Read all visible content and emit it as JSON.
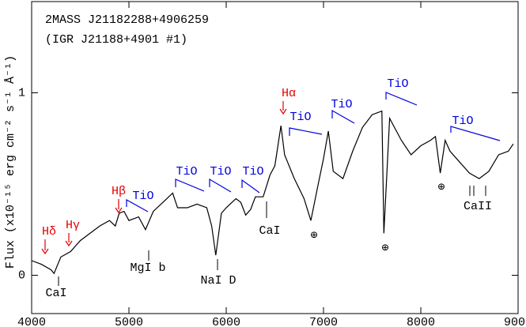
{
  "chart_data": {
    "type": "line",
    "y_label": "Flux (x10⁻¹⁵ erg cm⁻² s⁻¹ Å⁻¹)",
    "color": "#000000",
    "x": [
      4000,
      4100,
      4200,
      4230,
      4300,
      4400,
      4500,
      4600,
      4700,
      4800,
      4860,
      4900,
      4950,
      5000,
      5100,
      5170,
      5250,
      5350,
      5450,
      5500,
      5600,
      5700,
      5800,
      5850,
      5893,
      5950,
      6000,
      6100,
      6150,
      6200,
      6250,
      6300,
      6380,
      6450,
      6500,
      6563,
      6600,
      6700,
      6800,
      6870,
      6950,
      7000,
      7050,
      7100,
      7200,
      7300,
      7400,
      7500,
      7600,
      7620,
      7680,
      7800,
      7900,
      8000,
      8100,
      8150,
      8200,
      8250,
      8300,
      8400,
      8500,
      8600,
      8700,
      8800,
      8900,
      8950
    ],
    "values": [
      0.08,
      0.06,
      0.03,
      0.01,
      0.1,
      0.13,
      0.19,
      0.23,
      0.27,
      0.3,
      0.27,
      0.34,
      0.35,
      0.3,
      0.32,
      0.25,
      0.35,
      0.4,
      0.45,
      0.37,
      0.37,
      0.39,
      0.37,
      0.27,
      0.11,
      0.34,
      0.37,
      0.42,
      0.4,
      0.33,
      0.36,
      0.43,
      0.43,
      0.55,
      0.6,
      0.82,
      0.66,
      0.53,
      0.42,
      0.3,
      0.51,
      0.64,
      0.79,
      0.57,
      0.53,
      0.68,
      0.81,
      0.88,
      0.9,
      0.23,
      0.86,
      0.74,
      0.66,
      0.71,
      0.74,
      0.76,
      0.56,
      0.74,
      0.68,
      0.62,
      0.56,
      0.53,
      0.57,
      0.66,
      0.68,
      0.72
    ],
    "xlim": [
      4000,
      9000
    ],
    "ylim": [
      -0.21,
      1.5
    ],
    "xticks": [
      4000,
      5000,
      6000,
      7000,
      8000,
      9000
    ],
    "yticks": [
      0,
      1
    ],
    "annotations": [
      {
        "text": "2MASS J21182288+4906259",
        "color": "#000000"
      },
      {
        "text": "(IGR J21188+4901 #1)",
        "color": "#000000"
      },
      {
        "text": "Hδ",
        "color": "#e00000"
      },
      {
        "text": "Hγ",
        "color": "#e00000"
      },
      {
        "text": "Hβ",
        "color": "#e00000"
      },
      {
        "text": "Hα",
        "color": "#e00000"
      },
      {
        "text": "TiO",
        "color": "#0000e0"
      },
      {
        "text": "TiO",
        "color": "#0000e0"
      },
      {
        "text": "TiO",
        "color": "#0000e0"
      },
      {
        "text": "TiO",
        "color": "#0000e0"
      },
      {
        "text": "TiO",
        "color": "#0000e0"
      },
      {
        "text": "TiO",
        "color": "#0000e0"
      },
      {
        "text": "TiO",
        "color": "#0000e0"
      },
      {
        "text": "TiO",
        "color": "#0000e0"
      },
      {
        "text": "CaI",
        "color": "#000000"
      },
      {
        "text": "MgI b",
        "color": "#000000"
      },
      {
        "text": "NaI D",
        "color": "#000000"
      },
      {
        "text": "CaI",
        "color": "#000000"
      },
      {
        "text": "CaII",
        "color": "#000000"
      },
      {
        "text": "⊕",
        "color": "#000000"
      },
      {
        "text": "⊕",
        "color": "#000000"
      },
      {
        "text": "⊕",
        "color": "#000000"
      }
    ]
  }
}
